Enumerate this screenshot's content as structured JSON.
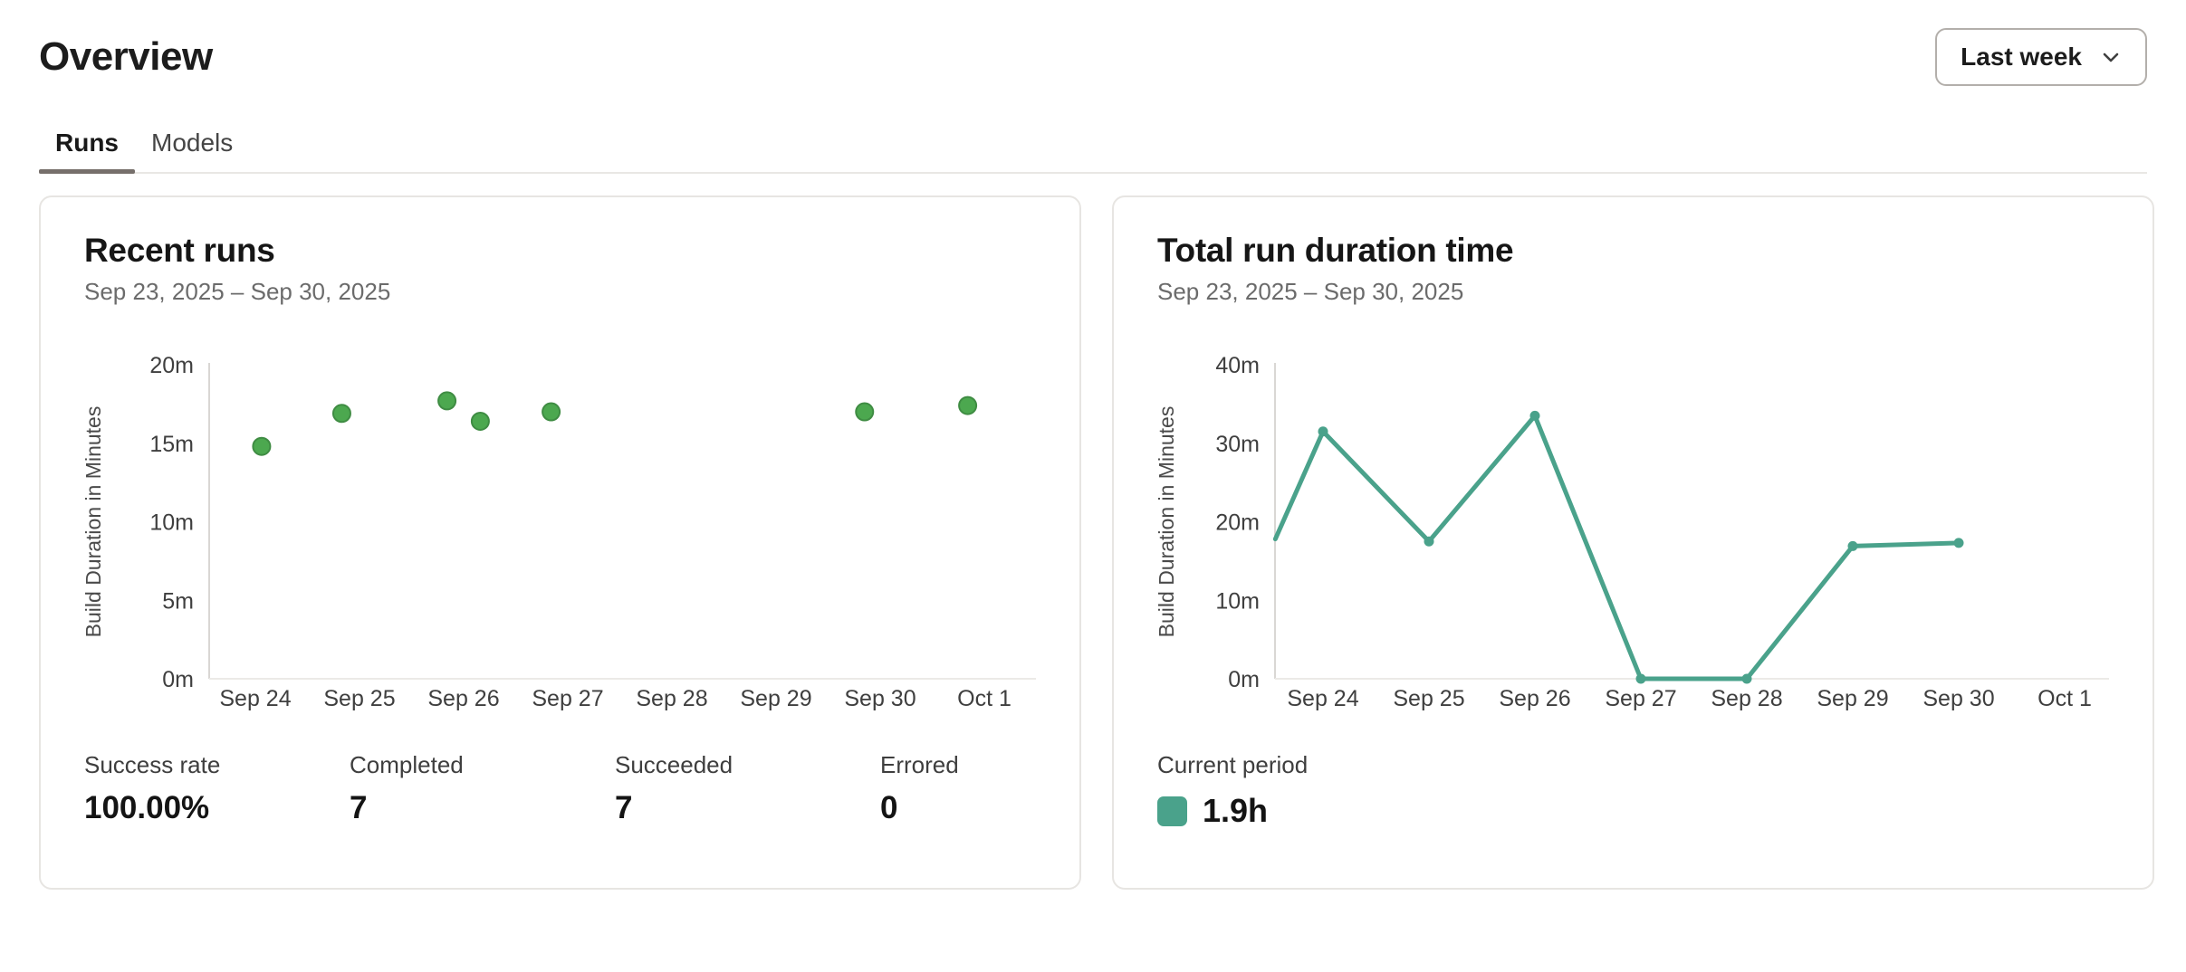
{
  "page": {
    "title": "Overview"
  },
  "period_selector": {
    "label": "Last week",
    "icon": "chevron-down-icon"
  },
  "tabs": [
    {
      "label": "Runs",
      "active": true
    },
    {
      "label": "Models",
      "active": false
    }
  ],
  "cards": {
    "recent_runs": {
      "title": "Recent runs",
      "date_range": "Sep 23, 2025 – Sep 30, 2025",
      "stats": [
        {
          "label": "Success rate",
          "value": "100.00%"
        },
        {
          "label": "Completed",
          "value": "7"
        },
        {
          "label": "Succeeded",
          "value": "7"
        },
        {
          "label": "Errored",
          "value": "0"
        }
      ]
    },
    "total_run_duration": {
      "title": "Total run duration time",
      "date_range": "Sep 23, 2025 – Sep 30, 2025",
      "legend": {
        "label": "Current period",
        "value": "1.9h",
        "color": "#4aa28b"
      }
    }
  },
  "colors": {
    "scatter_green_fill": "#4ca84f",
    "scatter_green_stroke": "#3f8c43",
    "line_teal": "#4aa28b",
    "axis_line": "#d9d7d4",
    "baseline": "#eceae7",
    "tick_text": "#3f3f3f",
    "axis_label_text": "#4a4a4a"
  },
  "chart_data": [
    {
      "id": "chart-recent-runs",
      "type": "scatter",
      "title": "Recent runs",
      "ylabel": "Build Duration in Minutes",
      "ylim": [
        0,
        20
      ],
      "y_ticks": [
        "0m",
        "5m",
        "10m",
        "15m",
        "20m"
      ],
      "x_ticks": [
        "Sep 24",
        "Sep 25",
        "Sep 26",
        "Sep 27",
        "Sep 28",
        "Sep 29",
        "Sep 30",
        "Oct 1"
      ],
      "grid": false,
      "points_note": "day_offset is days relative to the Sep 24 tick; minutes is build duration",
      "points": [
        {
          "day_offset": 0.06,
          "minutes": 14.8
        },
        {
          "day_offset": 0.83,
          "minutes": 16.9
        },
        {
          "day_offset": 1.84,
          "minutes": 17.7
        },
        {
          "day_offset": 2.16,
          "minutes": 16.4
        },
        {
          "day_offset": 2.84,
          "minutes": 17.0
        },
        {
          "day_offset": 5.85,
          "minutes": 17.0
        },
        {
          "day_offset": 6.84,
          "minutes": 17.4
        }
      ],
      "point_fill": "#4ca84f",
      "point_stroke": "#3f8c43"
    },
    {
      "id": "chart-total-duration",
      "type": "line",
      "title": "Total run duration time",
      "ylabel": "Build Duration in Minutes",
      "ylim": [
        0,
        40
      ],
      "y_ticks": [
        "0m",
        "10m",
        "20m",
        "30m",
        "40m"
      ],
      "x_ticks": [
        "Sep 24",
        "Sep 25",
        "Sep 26",
        "Sep 27",
        "Sep 28",
        "Sep 29",
        "Sep 30",
        "Oct 1"
      ],
      "grid": false,
      "legend_position": "bottom-left",
      "series_name": "Current period",
      "points_note": "day_offset is days relative to the Sep 24 tick; first point is the line clipped at the y-axis",
      "points": [
        {
          "day_offset": -0.45,
          "minutes": 17.8,
          "marker": false
        },
        {
          "day_offset": 0,
          "minutes": 31.5
        },
        {
          "day_offset": 1,
          "minutes": 17.5
        },
        {
          "day_offset": 2,
          "minutes": 33.5
        },
        {
          "day_offset": 3,
          "minutes": 0
        },
        {
          "day_offset": 4,
          "minutes": 0
        },
        {
          "day_offset": 5,
          "minutes": 16.9
        },
        {
          "day_offset": 6,
          "minutes": 17.3
        }
      ],
      "line_color": "#4aa28b"
    }
  ]
}
